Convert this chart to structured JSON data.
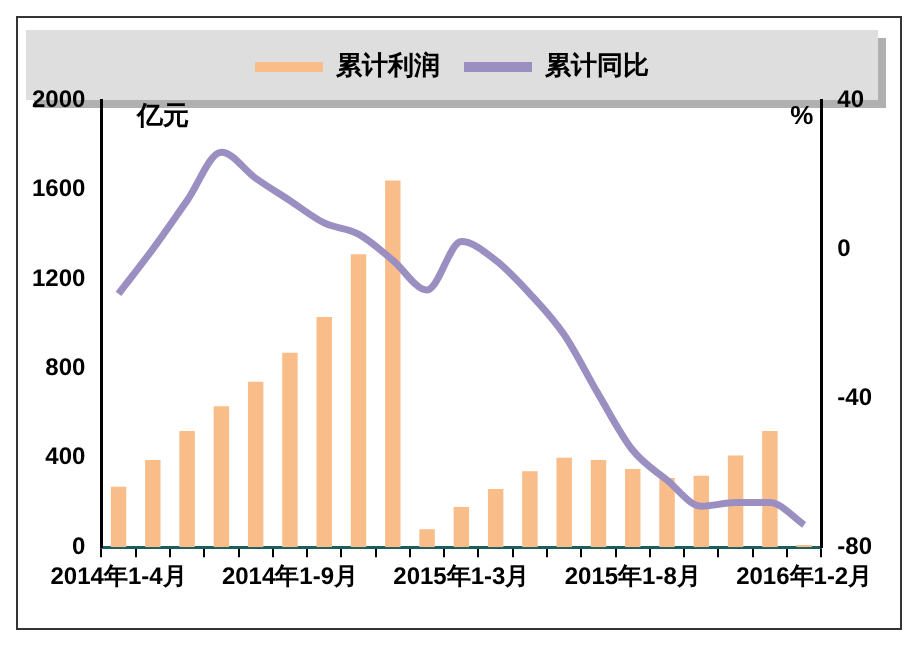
{
  "chart_data": {
    "type": "bar",
    "ylabel": "亿元",
    "y2label": "%",
    "categories": [
      "2014年1-4月",
      null,
      null,
      null,
      null,
      "2014年1-9月",
      null,
      null,
      null,
      null,
      "2015年1-3月",
      null,
      null,
      null,
      null,
      "2015年1-8月",
      null,
      null,
      null,
      null,
      "2016年1-2月"
    ],
    "series": [
      {
        "name": "累计利润",
        "type": "bar",
        "color": "#f9bd8a",
        "values": [
          270,
          390,
          520,
          630,
          740,
          870,
          1030,
          1310,
          1640,
          80,
          180,
          260,
          340,
          400,
          390,
          350,
          310,
          320,
          410,
          520,
          10
        ]
      },
      {
        "name": "累计同比",
        "type": "line",
        "axis": "y2",
        "color": "#9b8fc2",
        "values": [
          -12,
          0,
          13,
          26,
          19,
          13,
          7,
          4,
          -3,
          -11,
          2,
          -3,
          -12,
          -23,
          -39,
          -54,
          -62,
          -69,
          -68,
          -68,
          -74
        ]
      }
    ],
    "ylim": [
      0,
      2000
    ],
    "yticks": [
      0,
      400,
      800,
      1200,
      1600,
      2000
    ],
    "y2lim": [
      -80,
      40
    ],
    "y2ticks": [
      -80,
      -40,
      0,
      40
    ],
    "legend": "top",
    "grid": false,
    "marker": "none",
    "line_style": "solid"
  }
}
